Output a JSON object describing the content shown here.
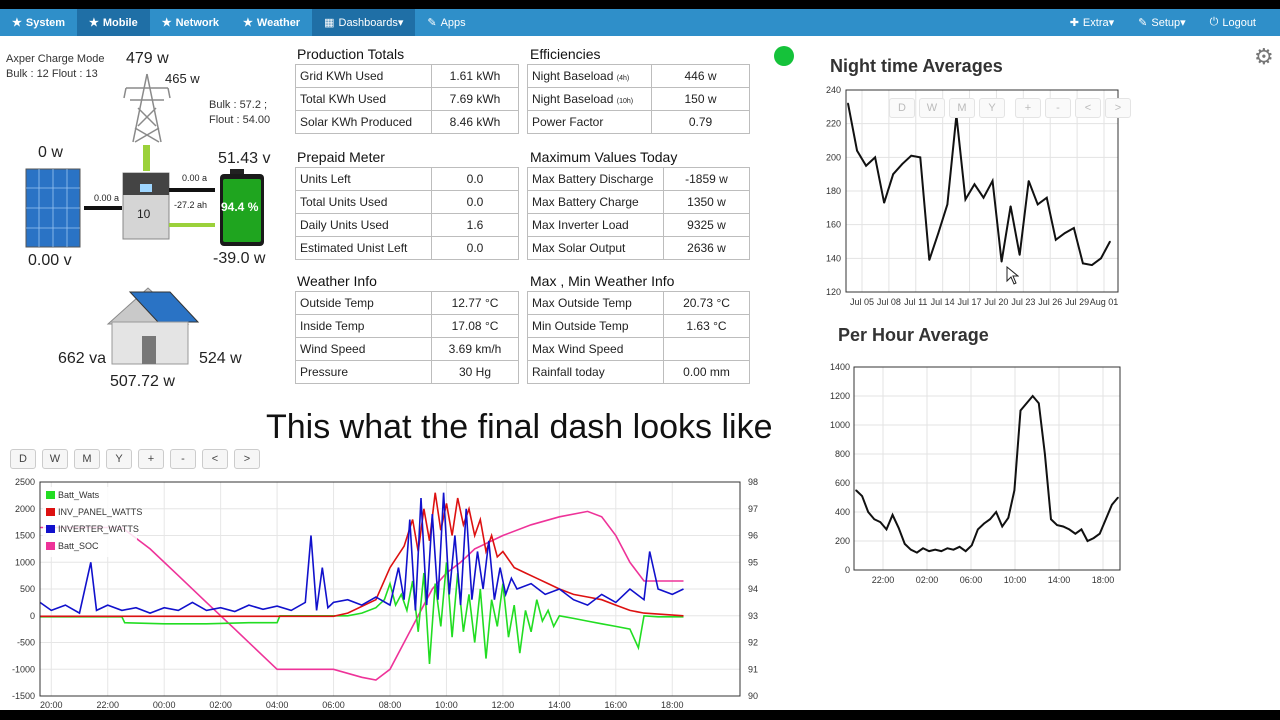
{
  "nav": {
    "left": [
      {
        "label": "System",
        "icon": "★"
      },
      {
        "label": "Mobile",
        "icon": "★"
      },
      {
        "label": "Network",
        "icon": "★"
      },
      {
        "label": "Weather",
        "icon": "★"
      },
      {
        "label": "Dashboards",
        "icon": "▦",
        "caret": "▾"
      },
      {
        "label": "Apps",
        "icon": "✎"
      }
    ],
    "right": [
      {
        "label": "Extra",
        "icon": "✚",
        "caret": "▾"
      },
      {
        "label": "Setup",
        "icon": "✎",
        "caret": "▾"
      },
      {
        "label": "Logout",
        "icon": "⏻"
      }
    ]
  },
  "diagram": {
    "charge_mode_title": "Axper Charge Mode",
    "charge_mode_values": "Bulk : 12 Flout : 13",
    "grid_power": "479 w",
    "grid_power2": "465 w",
    "bulk_line": "Bulk : 57.2 ;",
    "flout_line": "Flout : 54.00",
    "solar_power": "0 w",
    "solar_voltage": "0.00 v",
    "solar_current": "0.00 a",
    "inverter_label": "10",
    "battery_current": "0.00 a",
    "battery_ah": "-27.2 ah",
    "battery_voltage": "51.43 v",
    "battery_soc": "94.4 %",
    "battery_power": "-39.0 w",
    "house_va": "662 va",
    "house_w": "524 w",
    "house_total": "507.72 w"
  },
  "tables": {
    "production": {
      "title": "Production Totals",
      "rows": [
        [
          "Grid KWh Used",
          "1.61 kWh"
        ],
        [
          "Total KWh Used",
          "7.69 kWh"
        ],
        [
          "Solar KWh Produced",
          "8.46 kWh"
        ]
      ]
    },
    "efficiencies": {
      "title": "Efficiencies",
      "rows": [
        [
          "Night Baseload",
          "(4h)",
          "446 w"
        ],
        [
          "Night Baseload",
          "(10h)",
          "150 w"
        ],
        [
          "Power Factor",
          "",
          "0.79"
        ]
      ]
    },
    "prepaid": {
      "title": "Prepaid Meter",
      "rows": [
        [
          "Units Left",
          "0.0"
        ],
        [
          "Total Units Used",
          "0.0"
        ],
        [
          "Daily Units Used",
          "1.6"
        ],
        [
          "Estimated Unist Left",
          "0.0"
        ]
      ]
    },
    "maximum": {
      "title": "Maximum Values Today",
      "rows": [
        [
          "Max Battery Discharge",
          "-1859 w"
        ],
        [
          "Max Battery Charge",
          "1350 w"
        ],
        [
          "Max Inverter Load",
          "9325 w"
        ],
        [
          "Max Solar Output",
          "2636 w"
        ]
      ]
    },
    "weather": {
      "title": "Weather Info",
      "rows": [
        [
          "Outside Temp",
          "12.77 °C"
        ],
        [
          "Inside Temp",
          "17.08 °C"
        ],
        [
          "Wind Speed",
          "3.69 km/h"
        ],
        [
          "Pressure",
          "30 Hg"
        ]
      ]
    },
    "maxmin": {
      "title": "Max , Min Weather Info",
      "rows": [
        [
          "Max Outside Temp",
          "20.73 °C"
        ],
        [
          "Min Outside Temp",
          "1.63 °C"
        ],
        [
          "Max Wind Speed",
          ""
        ],
        [
          "Rainfall today",
          "0.00 mm"
        ]
      ]
    }
  },
  "caption": "This what the final dash looks like",
  "buttons": [
    "D",
    "W",
    "M",
    "Y",
    "+",
    "-",
    "<",
    ">"
  ],
  "colors": {
    "navbar": "#2f8fc9",
    "status": "#15c23a",
    "batt": "#22dd22",
    "inv_panel": "#dd1111",
    "inverter": "#1111cc",
    "soc": "#ee3399"
  },
  "charts": {
    "night": {
      "title": "Night time Averages",
      "ylim": [
        120,
        240
      ],
      "yticks": [
        "120",
        "140",
        "160",
        "180",
        "200",
        "220",
        "240"
      ],
      "xticks": [
        "Jul 05",
        "Jul 08",
        "Jul 11",
        "Jul 14",
        "Jul 17",
        "Jul 20",
        "Jul 23",
        "Jul 26",
        "Jul 29",
        "Aug 01"
      ],
      "values": [
        232,
        204,
        195,
        200,
        173,
        190,
        196,
        201,
        200,
        139,
        155,
        172,
        225,
        175,
        184,
        176,
        186,
        138,
        171,
        142,
        186,
        172,
        176,
        151,
        155,
        158,
        137,
        136,
        140,
        150
      ]
    },
    "hour": {
      "title": "Per Hour Average",
      "ylim": [
        0,
        1400
      ],
      "yticks": [
        "0",
        "200",
        "400",
        "600",
        "800",
        "1000",
        "1200",
        "1400"
      ],
      "xticks": [
        "22:00",
        "02:00",
        "06:00",
        "10:00",
        "14:00",
        "18:00"
      ],
      "values": [
        550,
        510,
        400,
        350,
        330,
        280,
        380,
        290,
        180,
        140,
        120,
        150,
        130,
        140,
        130,
        150,
        140,
        160,
        130,
        170,
        280,
        320,
        350,
        400,
        300,
        360,
        550,
        1100,
        1150,
        1200,
        1150,
        800,
        350,
        310,
        300,
        280,
        250,
        280,
        200,
        220,
        250,
        350,
        450,
        500
      ]
    },
    "main": {
      "legend": [
        "Batt_Wats",
        "INV_PANEL_WATTS",
        "INVERTER_WATTS",
        "Batt_SOC"
      ],
      "ylim_left": [
        -1500,
        2500
      ],
      "yticks_left": [
        "-1500",
        "-1000",
        "-500",
        "0",
        "500",
        "1000",
        "1500",
        "2000",
        "2500"
      ],
      "ylim_right": [
        90,
        98
      ],
      "yticks_right": [
        "90",
        "91",
        "92",
        "93",
        "94",
        "95",
        "96",
        "97",
        "98"
      ],
      "xticks": [
        "20:00",
        "22:00",
        "00:00",
        "02:00",
        "04:00",
        "06:00",
        "08:00",
        "10:00",
        "12:00",
        "14:00",
        "16:00",
        "18:00"
      ],
      "t_start": 19.6,
      "t_end": 20.4,
      "batt_wats": [
        [
          19.6,
          -20
        ],
        [
          21.0,
          -20
        ],
        [
          22.5,
          -20
        ],
        [
          22.6,
          -130
        ],
        [
          24.0,
          -150
        ],
        [
          25.5,
          -150
        ],
        [
          27.0,
          -130
        ],
        [
          28.0,
          -130
        ],
        [
          28.1,
          0
        ],
        [
          29.5,
          0
        ],
        [
          30.5,
          0
        ],
        [
          31.0,
          50
        ],
        [
          31.5,
          150
        ],
        [
          31.8,
          300
        ],
        [
          32.0,
          600
        ],
        [
          32.2,
          200
        ],
        [
          32.4,
          400
        ],
        [
          32.6,
          100
        ],
        [
          32.8,
          650
        ],
        [
          33.0,
          -300
        ],
        [
          33.2,
          800
        ],
        [
          33.4,
          -900
        ],
        [
          33.6,
          600
        ],
        [
          33.8,
          -200
        ],
        [
          34.0,
          1000
        ],
        [
          34.2,
          -400
        ],
        [
          34.4,
          800
        ],
        [
          34.6,
          -300
        ],
        [
          34.8,
          400
        ],
        [
          35.0,
          -500
        ],
        [
          35.2,
          500
        ],
        [
          35.4,
          -800
        ],
        [
          35.6,
          300
        ],
        [
          35.8,
          -200
        ],
        [
          36.0,
          600
        ],
        [
          36.2,
          -400
        ],
        [
          36.4,
          200
        ],
        [
          36.6,
          -700
        ],
        [
          36.8,
          100
        ],
        [
          37.0,
          -300
        ],
        [
          37.2,
          300
        ],
        [
          37.4,
          -100
        ],
        [
          37.6,
          100
        ],
        [
          37.8,
          -200
        ],
        [
          38.0,
          0
        ],
        [
          38.5,
          -50
        ],
        [
          39.0,
          -100
        ],
        [
          39.5,
          -150
        ],
        [
          40.0,
          -200
        ],
        [
          40.5,
          -250
        ],
        [
          40.8,
          -600
        ],
        [
          41.0,
          0
        ],
        [
          41.5,
          -20
        ],
        [
          42.4,
          -20
        ]
      ],
      "inv_panel": [
        [
          19.6,
          -10
        ],
        [
          24.0,
          -10
        ],
        [
          28.0,
          -10
        ],
        [
          30.0,
          -10
        ],
        [
          30.5,
          50
        ],
        [
          31.5,
          300
        ],
        [
          32.0,
          900
        ],
        [
          32.5,
          1300
        ],
        [
          32.8,
          1800
        ],
        [
          33.0,
          1200
        ],
        [
          33.2,
          2000
        ],
        [
          33.4,
          1400
        ],
        [
          33.6,
          2300
        ],
        [
          33.8,
          1600
        ],
        [
          34.0,
          2100
        ],
        [
          34.2,
          1500
        ],
        [
          34.4,
          2200
        ],
        [
          34.6,
          1700
        ],
        [
          34.8,
          2000
        ],
        [
          35.0,
          1500
        ],
        [
          35.2,
          1800
        ],
        [
          35.4,
          1200
        ],
        [
          35.6,
          1500
        ],
        [
          35.8,
          1100
        ],
        [
          36.0,
          1200
        ],
        [
          36.4,
          900
        ],
        [
          36.8,
          800
        ],
        [
          37.2,
          700
        ],
        [
          37.6,
          600
        ],
        [
          38.0,
          500
        ],
        [
          38.5,
          400
        ],
        [
          39.0,
          350
        ],
        [
          39.5,
          300
        ],
        [
          40.0,
          200
        ],
        [
          40.5,
          100
        ],
        [
          41.0,
          50
        ],
        [
          42.4,
          0
        ]
      ],
      "inverter": [
        [
          19.6,
          250
        ],
        [
          20.0,
          100
        ],
        [
          20.5,
          200
        ],
        [
          21.0,
          50
        ],
        [
          21.4,
          1000
        ],
        [
          21.6,
          100
        ],
        [
          22.0,
          200
        ],
        [
          22.5,
          100
        ],
        [
          23.0,
          150
        ],
        [
          23.5,
          50
        ],
        [
          24.0,
          150
        ],
        [
          24.5,
          100
        ],
        [
          25.0,
          250
        ],
        [
          25.5,
          100
        ],
        [
          26.0,
          150
        ],
        [
          26.5,
          80
        ],
        [
          27.0,
          200
        ],
        [
          27.5,
          120
        ],
        [
          28.0,
          180
        ],
        [
          28.5,
          100
        ],
        [
          29.0,
          250
        ],
        [
          29.2,
          1500
        ],
        [
          29.4,
          100
        ],
        [
          29.6,
          900
        ],
        [
          29.8,
          150
        ],
        [
          30.0,
          250
        ],
        [
          30.5,
          300
        ],
        [
          31.0,
          200
        ],
        [
          31.5,
          350
        ],
        [
          32.0,
          200
        ],
        [
          32.3,
          900
        ],
        [
          32.5,
          300
        ],
        [
          32.7,
          1800
        ],
        [
          32.9,
          100
        ],
        [
          33.1,
          2200
        ],
        [
          33.3,
          200
        ],
        [
          33.5,
          1900
        ],
        [
          33.7,
          300
        ],
        [
          33.9,
          2300
        ],
        [
          34.1,
          400
        ],
        [
          34.3,
          1500
        ],
        [
          34.5,
          200
        ],
        [
          34.7,
          2000
        ],
        [
          34.9,
          300
        ],
        [
          35.1,
          1200
        ],
        [
          35.3,
          500
        ],
        [
          35.5,
          1400
        ],
        [
          35.7,
          300
        ],
        [
          35.9,
          900
        ],
        [
          36.1,
          400
        ],
        [
          36.3,
          700
        ],
        [
          36.5,
          500
        ],
        [
          37.0,
          600
        ],
        [
          37.5,
          400
        ],
        [
          38.0,
          500
        ],
        [
          38.5,
          300
        ],
        [
          39.0,
          200
        ],
        [
          39.5,
          400
        ],
        [
          40.0,
          250
        ],
        [
          40.5,
          500
        ],
        [
          41.0,
          300
        ],
        [
          41.2,
          1200
        ],
        [
          41.5,
          500
        ],
        [
          42.0,
          400
        ],
        [
          42.4,
          500
        ]
      ],
      "soc": [
        [
          19.6,
          96.3
        ],
        [
          21.0,
          96.3
        ],
        [
          22.5,
          96.3
        ],
        [
          23.5,
          95.5
        ],
        [
          24.5,
          94.5
        ],
        [
          25.5,
          93.5
        ],
        [
          26.5,
          92.5
        ],
        [
          27.5,
          91.5
        ],
        [
          28.0,
          91.0
        ],
        [
          30.0,
          91.0
        ],
        [
          31.0,
          90.7
        ],
        [
          31.5,
          90.6
        ],
        [
          32.0,
          91.0
        ],
        [
          32.5,
          92.0
        ],
        [
          33.0,
          93.0
        ],
        [
          33.5,
          94.0
        ],
        [
          34.0,
          94.6
        ],
        [
          34.5,
          95.0
        ],
        [
          35.0,
          95.5
        ],
        [
          36.0,
          96.0
        ],
        [
          37.0,
          96.4
        ],
        [
          38.0,
          96.7
        ],
        [
          39.0,
          96.9
        ],
        [
          39.5,
          96.7
        ],
        [
          40.0,
          96.0
        ],
        [
          40.5,
          95.0
        ],
        [
          41.0,
          94.3
        ],
        [
          42.4,
          94.3
        ]
      ]
    }
  }
}
